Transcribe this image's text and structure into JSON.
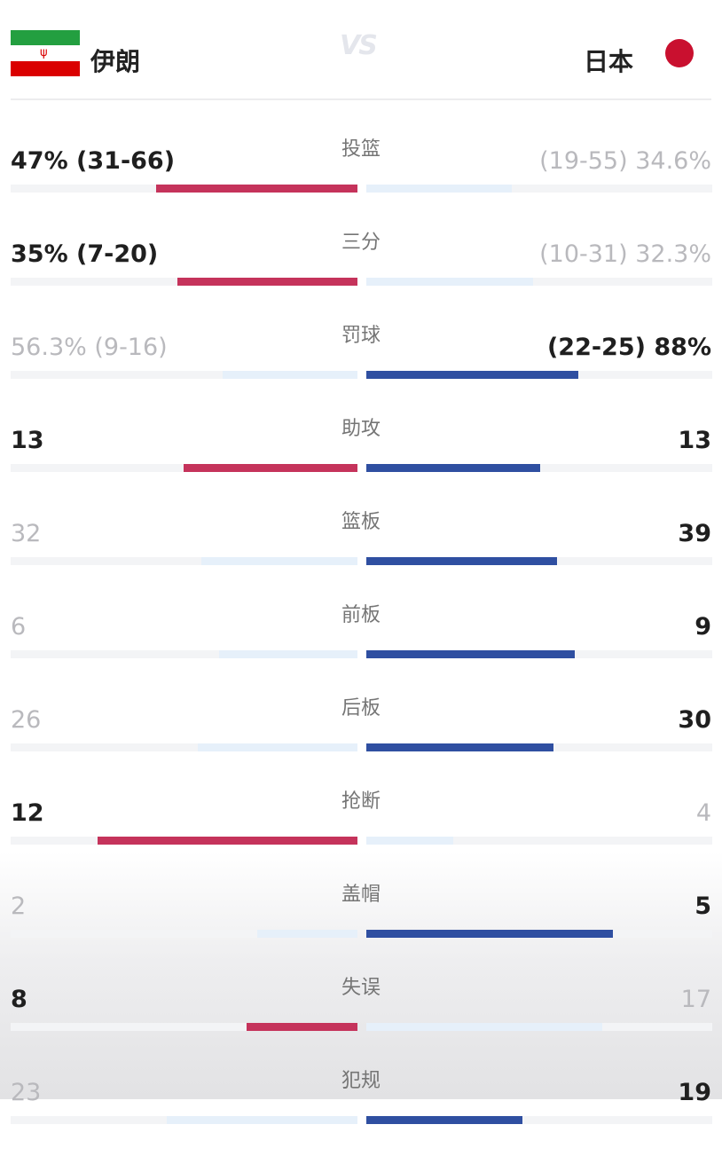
{
  "header": {
    "team_left": "伊朗",
    "team_right": "日本",
    "vs_label": "VS",
    "flag_left_icon": "iran-flag-icon",
    "flag_right_icon": "japan-flag-icon"
  },
  "colors": {
    "left_team": "#c5335b",
    "right_team": "#2f4fa1",
    "loser_bar": "#e6f0fa",
    "track": "#f3f4f6"
  },
  "stats": [
    {
      "label": "投篮",
      "left": "47% (31-66)",
      "right": "(19-55) 34.6%",
      "left_share": 0.58,
      "right_share": 0.42,
      "leader": "left"
    },
    {
      "label": "三分",
      "left": "35% (7-20)",
      "right": "(10-31) 32.3%",
      "left_share": 0.52,
      "right_share": 0.48,
      "leader": "left"
    },
    {
      "label": "罚球",
      "left": "56.3% (9-16)",
      "right": "(22-25) 88%",
      "left_share": 0.39,
      "right_share": 0.61,
      "leader": "right"
    },
    {
      "label": "助攻",
      "left": "13",
      "right": "13",
      "left_share": 0.5,
      "right_share": 0.5,
      "leader": "both"
    },
    {
      "label": "篮板",
      "left": "32",
      "right": "39",
      "left_share": 0.45,
      "right_share": 0.55,
      "leader": "right"
    },
    {
      "label": "前板",
      "left": "6",
      "right": "9",
      "left_share": 0.4,
      "right_share": 0.6,
      "leader": "right"
    },
    {
      "label": "后板",
      "left": "26",
      "right": "30",
      "left_share": 0.46,
      "right_share": 0.54,
      "leader": "right"
    },
    {
      "label": "抢断",
      "left": "12",
      "right": "4",
      "left_share": 0.75,
      "right_share": 0.25,
      "leader": "left"
    },
    {
      "label": "盖帽",
      "left": "2",
      "right": "5",
      "left_share": 0.29,
      "right_share": 0.71,
      "leader": "right"
    },
    {
      "label": "失误",
      "left": "8",
      "right": "17",
      "left_share": 0.32,
      "right_share": 0.68,
      "leader": "left"
    },
    {
      "label": "犯规",
      "left": "23",
      "right": "19",
      "left_share": 0.55,
      "right_share": 0.45,
      "leader": "right"
    }
  ]
}
